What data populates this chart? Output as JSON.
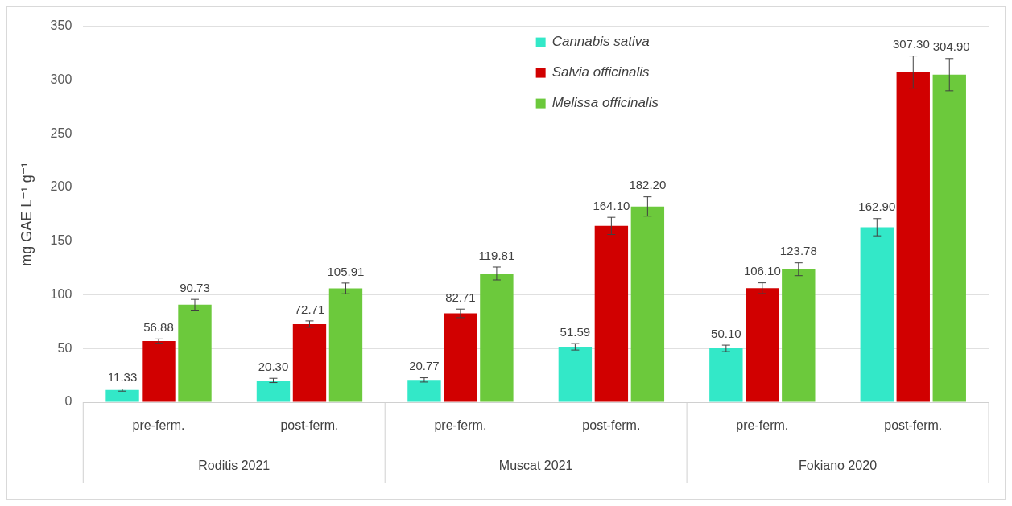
{
  "chart_data": {
    "type": "bar",
    "ylabel": "mg GAE L⁻¹ g⁻¹",
    "categories": [
      "pre-ferm.",
      "post-ferm.",
      "pre-ferm.",
      "post-ferm.",
      "pre-ferm.",
      "post-ferm."
    ],
    "annotations": [
      "Roditis 2021",
      "Muscat 2021",
      "Fokiano 2020"
    ],
    "series": [
      {
        "name": "Cannabis sativa",
        "color": "#33e8c8",
        "values": [
          11.33,
          20.3,
          20.77,
          51.59,
          50.1,
          162.9
        ],
        "errors": [
          1,
          2,
          2,
          3,
          3,
          8
        ],
        "value_labels": [
          "11.33",
          "20.30",
          "20.77",
          "51.59",
          "50.10",
          "162.90"
        ]
      },
      {
        "name": "Salvia officinalis",
        "color": "#d10000",
        "values": [
          56.88,
          72.71,
          82.71,
          164.1,
          106.1,
          307.3
        ],
        "errors": [
          2,
          3,
          4,
          8,
          5,
          15
        ],
        "value_labels": [
          "56.88",
          "72.71",
          "82.71",
          "164.10",
          "106.10",
          "307.30"
        ]
      },
      {
        "name": "Melissa officinalis",
        "color": "#6cc93c",
        "values": [
          90.73,
          105.91,
          119.81,
          182.2,
          123.78,
          304.9
        ],
        "errors": [
          5,
          5,
          6,
          9,
          6,
          15
        ],
        "value_labels": [
          "90.73",
          "105.91",
          "119.81",
          "182.20",
          "123.78",
          "304.90"
        ]
      }
    ],
    "ylim": [
      0,
      350
    ],
    "yticks": [
      0,
      50,
      100,
      150,
      200,
      250,
      300,
      350
    ],
    "grid": "y",
    "legend": "top"
  }
}
